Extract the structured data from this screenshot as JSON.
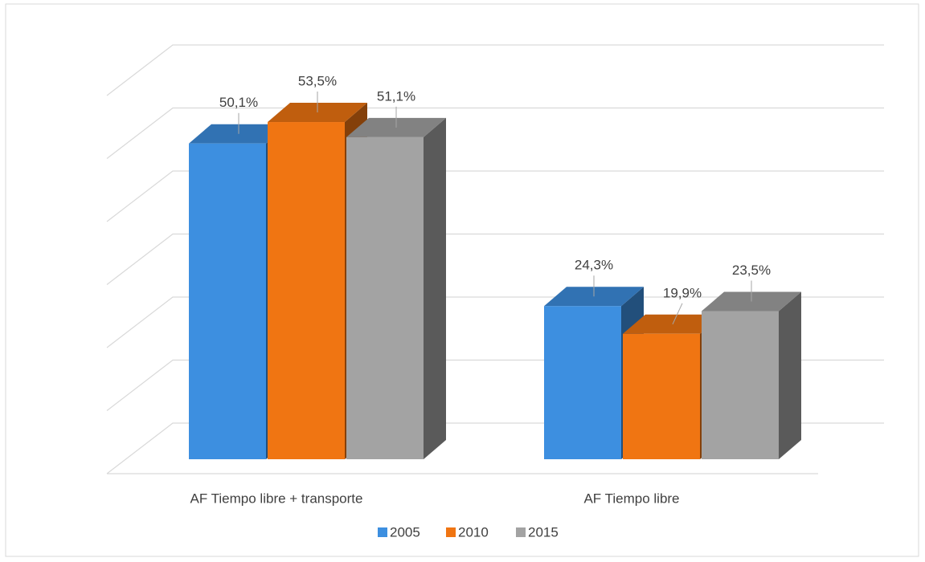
{
  "chart_data": {
    "type": "bar3d",
    "categories": [
      "AF Tiempo libre + transporte",
      "AF Tiempo libre"
    ],
    "series": [
      {
        "name": "2005",
        "color": "#3d8fe0",
        "values": [
          50.1,
          24.3
        ],
        "value_labels": [
          "50,1%",
          "24,3%"
        ]
      },
      {
        "name": "2010",
        "color": "#f07512",
        "values": [
          53.5,
          19.9
        ],
        "value_labels": [
          "53,5%",
          "19,9%"
        ]
      },
      {
        "name": "2015",
        "color": "#a3a3a3",
        "values": [
          51.1,
          23.5
        ],
        "value_labels": [
          "51,1%",
          "23,5%"
        ]
      }
    ],
    "ylim": [
      0,
      60
    ],
    "yticks": [
      0,
      10,
      20,
      30,
      40,
      50,
      60
    ],
    "grid": true,
    "legend": "bottom"
  }
}
